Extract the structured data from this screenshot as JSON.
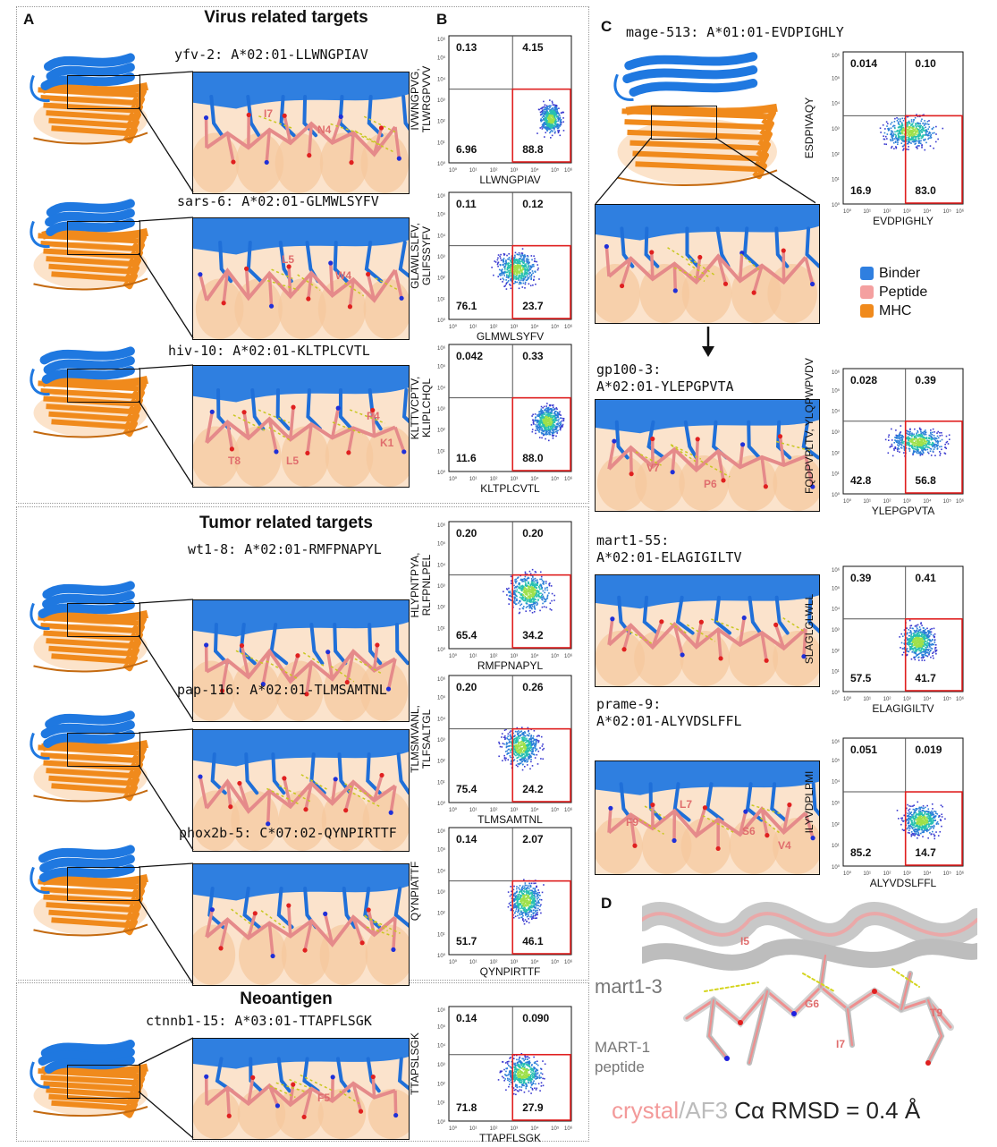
{
  "panel_letters": {
    "a": "A",
    "b": "B",
    "c": "C",
    "d": "D"
  },
  "sections": {
    "virus": "Virus related targets",
    "tumor": "Tumor related targets",
    "neo": "Neoantigen"
  },
  "targets": [
    {
      "label": "yfv-2: A*02:01-LLWNGPIAV",
      "residues": [
        "I7",
        "N4"
      ],
      "ylabel": [
        "IVWNGPVG,",
        "TLWRGPVVV"
      ],
      "xlabel": "LLWNGPIAV",
      "q": {
        "ul": "0.13",
        "ur": "4.15",
        "ll": "6.96",
        "lr": "88.8"
      }
    },
    {
      "label": "sars-6: A*02:01-GLMWLSYFV",
      "residues": [
        "L5",
        "W4"
      ],
      "ylabel": [
        "GLAWLSLFV,",
        "GLIFSSYFV"
      ],
      "xlabel": "GLMWLSYFV",
      "q": {
        "ul": "0.11",
        "ur": "0.12",
        "ll": "76.1",
        "lr": "23.7"
      }
    },
    {
      "label": "hiv-10: A*02:01-KLTPLCVTL",
      "residues": [
        "P4",
        "K1",
        "T8",
        "L5"
      ],
      "ylabel": [
        "KLTTVCPTV,",
        "KLIPLCHQL"
      ],
      "xlabel": "KLTPLCVTL",
      "q": {
        "ul": "0.042",
        "ur": "0.33",
        "ll": "11.6",
        "lr": "88.0"
      }
    },
    {
      "label": "wt1-8: A*02:01-RMFPNAPYL",
      "residues": [],
      "ylabel": [
        "HLYPNTPYA,",
        "RLFPNLPEL"
      ],
      "xlabel": "RMFPNAPYL",
      "q": {
        "ul": "0.20",
        "ur": "0.20",
        "ll": "65.4",
        "lr": "34.2"
      }
    },
    {
      "label": "pap-116: A*02:01-TLMSAMTNL",
      "residues": [],
      "ylabel": [
        "TLMSMVANL,",
        "TLFSALTGL"
      ],
      "xlabel": "TLMSAMTNL",
      "q": {
        "ul": "0.20",
        "ur": "0.26",
        "ll": "75.4",
        "lr": "24.2"
      }
    },
    {
      "label": "phox2b-5: C*07:02-QYNPIRTTF",
      "residues": [],
      "ylabel": [
        "QYNPIATTF"
      ],
      "xlabel": "QYNPIRTTF",
      "q": {
        "ul": "0.14",
        "ur": "2.07",
        "ll": "51.7",
        "lr": "46.1"
      }
    },
    {
      "label": "ctnnb1-15: A*03:01-TTAPFLSGK",
      "residues": [
        "F5"
      ],
      "ylabel": [
        "TTAPSLSGK"
      ],
      "xlabel": "TTAPFLSGK",
      "q": {
        "ul": "0.14",
        "ur": "0.090",
        "ll": "71.8",
        "lr": "27.9"
      }
    }
  ],
  "panel_c": [
    {
      "label": "mage-513: A*01:01-EVDPIGHLY",
      "label2": "",
      "residues": [],
      "ylabel": [
        "ESDPIVAQY"
      ],
      "xlabel": "EVDPIGHLY",
      "q": {
        "ul": "0.014",
        "ur": "0.10",
        "ll": "16.9",
        "lr": "83.0"
      }
    },
    {
      "label": "gp100-3:",
      "label2": "A*02:01-YLEPGPVTA",
      "residues": [
        "V7",
        "P6"
      ],
      "ylabel": [
        "FQDPVPLTV, YLQPWPVDV"
      ],
      "xlabel": "YLEPGPVTA",
      "q": {
        "ul": "0.028",
        "ur": "0.39",
        "ll": "42.8",
        "lr": "56.8"
      }
    },
    {
      "label": "mart1-55:",
      "label2": "A*02:01-ELAGIGILTV",
      "residues": [],
      "ylabel": [
        "SLAGLGLWLL"
      ],
      "xlabel": "ELAGIGILTV",
      "q": {
        "ul": "0.39",
        "ur": "0.41",
        "ll": "57.5",
        "lr": "41.7"
      }
    },
    {
      "label": "prame-9:",
      "label2": "A*02:01-ALYVDSLFFL",
      "residues": [
        "L7",
        "F9",
        "S6",
        "V4"
      ],
      "ylabel": [
        "ILYVDPLPMI"
      ],
      "xlabel": "ALYVDSLFFL",
      "q": {
        "ul": "0.051",
        "ur": "0.019",
        "ll": "85.2",
        "lr": "14.7"
      }
    }
  ],
  "legend": [
    {
      "label": "Binder",
      "color": "#2f7fe0"
    },
    {
      "label": "Peptide",
      "color": "#f4a0a0"
    },
    {
      "label": "MHC",
      "color": "#f08a1c"
    }
  ],
  "panel_d": {
    "mart_label": "mart1-3",
    "peptide_label_1": "MART-1",
    "peptide_label_2": "peptide",
    "residues": [
      "I5",
      "G6",
      "I7",
      "T9"
    ],
    "crystal": "crystal",
    "slash": "/",
    "af3": "AF3",
    "rmsd": " Cα RMSD = 0.4 Å"
  },
  "axis_ticks": {
    "x": [
      "10⁰",
      "10¹",
      "10²",
      "10³",
      "10⁴",
      "10⁵",
      "10⁶"
    ],
    "y": [
      "10⁰",
      "10¹",
      "10²",
      "10³",
      "10⁴",
      "10⁵",
      "10⁶"
    ]
  }
}
